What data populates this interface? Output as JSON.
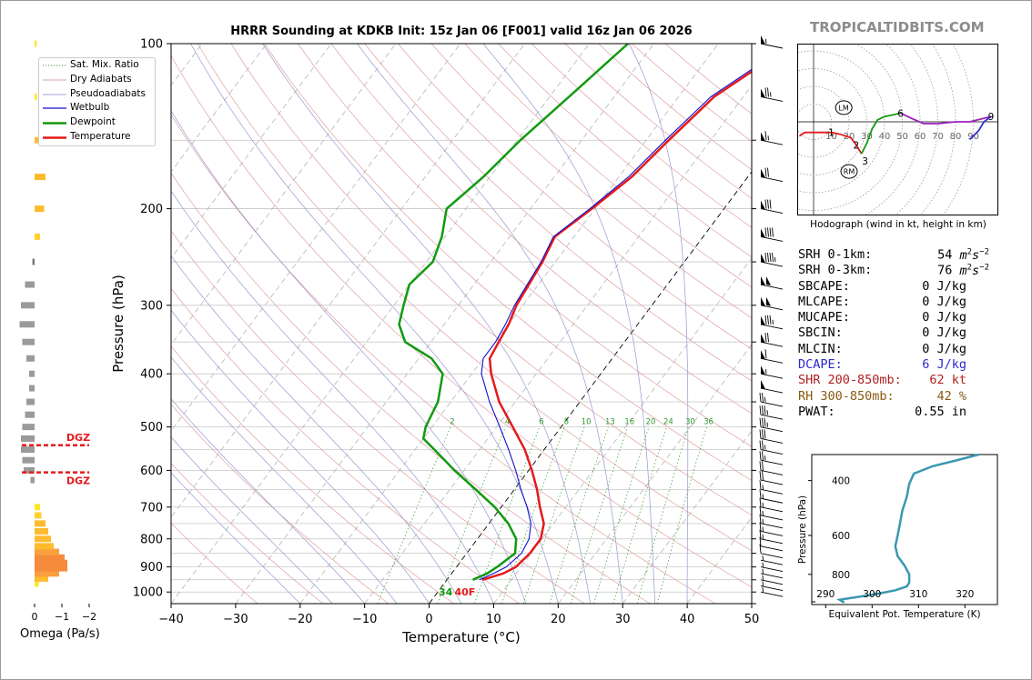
{
  "brand": "TROPICALTIDBITS.COM",
  "title": "HRRR Sounding at KDKB Init: 15z Jan 06 [F001] valid 16z Jan 06 2026",
  "chart_data": [
    {
      "type": "line",
      "name": "skew-t",
      "xlabel": "Temperature (°C)",
      "ylabel": "Pressure (hPa)",
      "xlim": [
        -40,
        50
      ],
      "ylim": [
        1050,
        100
      ],
      "y_scale": "log",
      "x_ticks": [
        "−40",
        "−30",
        "−20",
        "−10",
        "0",
        "10",
        "20",
        "30",
        "40",
        "50"
      ],
      "y_ticks": [
        100,
        200,
        300,
        400,
        500,
        600,
        700,
        800,
        900,
        1000
      ],
      "legend": {
        "position": "top-left",
        "entries": [
          "Sat. Mix. Ratio",
          "Dry Adiabats",
          "Pseudoadiabats",
          "Wetbulb",
          "Dewpoint",
          "Temperature"
        ]
      },
      "mixing_ratio_labels": [
        "2",
        "4",
        "6",
        "8",
        "10",
        "13",
        "16",
        "20",
        "24",
        "30",
        "36"
      ],
      "series": [
        {
          "name": "Temperature",
          "color": "#e41a1c",
          "points": [
            [
              950,
              5.5
            ],
            [
              925,
              8
            ],
            [
              900,
              9.2
            ],
            [
              850,
              9.8
            ],
            [
              800,
              9.8
            ],
            [
              750,
              8.5
            ],
            [
              700,
              6
            ],
            [
              650,
              3.5
            ],
            [
              600,
              0.5
            ],
            [
              550,
              -3
            ],
            [
              500,
              -7.5
            ],
            [
              450,
              -12.5
            ],
            [
              400,
              -17
            ],
            [
              375,
              -19
            ],
            [
              350,
              -19.5
            ],
            [
              325,
              -20
            ],
            [
              300,
              -21
            ],
            [
              250,
              -22
            ],
            [
              225,
              -23
            ],
            [
              200,
              -20.5
            ],
            [
              175,
              -18
            ],
            [
              150,
              -16.5
            ],
            [
              125,
              -14.5
            ],
            [
              110,
              -11
            ],
            [
              100,
              -9.5
            ]
          ]
        },
        {
          "name": "Wetbulb",
          "color": "#1010d0",
          "points": [
            [
              950,
              5
            ],
            [
              925,
              6.5
            ],
            [
              900,
              7.7
            ],
            [
              850,
              8.5
            ],
            [
              800,
              8
            ],
            [
              750,
              6.5
            ],
            [
              700,
              4
            ],
            [
              650,
              1
            ],
            [
              600,
              -2
            ],
            [
              550,
              -5.5
            ],
            [
              500,
              -9.5
            ],
            [
              450,
              -14
            ],
            [
              400,
              -18.5
            ],
            [
              375,
              -20
            ],
            [
              350,
              -20
            ],
            [
              325,
              -20.5
            ],
            [
              300,
              -21.3
            ],
            [
              250,
              -22.2
            ],
            [
              225,
              -23.2
            ],
            [
              200,
              -20.8
            ],
            [
              175,
              -18.5
            ],
            [
              150,
              -17
            ],
            [
              125,
              -15
            ],
            [
              110,
              -11.5
            ],
            [
              100,
              -10
            ]
          ]
        },
        {
          "name": "Dewpoint",
          "color": "#119a11",
          "points": [
            [
              950,
              4
            ],
            [
              925,
              5.5
            ],
            [
              900,
              6.3
            ],
            [
              850,
              7.5
            ],
            [
              800,
              6
            ],
            [
              750,
              3
            ],
            [
              700,
              -1
            ],
            [
              650,
              -6
            ],
            [
              600,
              -11.5
            ],
            [
              550,
              -17
            ],
            [
              525,
              -20
            ],
            [
              500,
              -21
            ],
            [
              450,
              -22
            ],
            [
              400,
              -24.5
            ],
            [
              375,
              -28
            ],
            [
              350,
              -34
            ],
            [
              325,
              -37
            ],
            [
              300,
              -38.5
            ],
            [
              275,
              -40
            ],
            [
              250,
              -39
            ],
            [
              225,
              -40.5
            ],
            [
              200,
              -43
            ],
            [
              175,
              -41
            ],
            [
              150,
              -39.5
            ],
            [
              125,
              -37
            ],
            [
              100,
              -34
            ]
          ]
        }
      ],
      "annotations": {
        "surface_dewpoint_f": "34",
        "surface_temp_f": "40F"
      },
      "omega": {
        "xlabel": "Omega (Pa/s)",
        "x_ticks": [
          "0",
          "−1",
          "−2"
        ],
        "dgz_label": "DGZ",
        "dgz_pressures": [
          540,
          605
        ],
        "levels": [
          {
            "p": 965,
            "v": 0.15,
            "color": "#fde725"
          },
          {
            "p": 945,
            "v": 0.5,
            "color": "#fdbb2d"
          },
          {
            "p": 925,
            "v": 0.9,
            "color": "#f9a03f"
          },
          {
            "p": 905,
            "v": 1.2,
            "color": "#f68b3d"
          },
          {
            "p": 885,
            "v": 1.2,
            "color": "#f68b3d"
          },
          {
            "p": 865,
            "v": 1.1,
            "color": "#f68b3d"
          },
          {
            "p": 845,
            "v": 0.9,
            "color": "#f9a03f"
          },
          {
            "p": 825,
            "v": 0.7,
            "color": "#fdbb2d"
          },
          {
            "p": 800,
            "v": 0.6,
            "color": "#fdbb2d"
          },
          {
            "p": 775,
            "v": 0.5,
            "color": "#fdbb2d"
          },
          {
            "p": 750,
            "v": 0.4,
            "color": "#fdbb2d"
          },
          {
            "p": 725,
            "v": 0.25,
            "color": "#fdd02d"
          },
          {
            "p": 700,
            "v": 0.2,
            "color": "#fde725"
          },
          {
            "p": 625,
            "v": -0.15,
            "color": "#9a9a9a"
          },
          {
            "p": 600,
            "v": -0.4,
            "color": "#9a9a9a"
          },
          {
            "p": 575,
            "v": -0.45,
            "color": "#9a9a9a"
          },
          {
            "p": 550,
            "v": -0.5,
            "color": "#9a9a9a"
          },
          {
            "p": 525,
            "v": -0.5,
            "color": "#9a9a9a"
          },
          {
            "p": 500,
            "v": -0.45,
            "color": "#9a9a9a"
          },
          {
            "p": 475,
            "v": -0.35,
            "color": "#9a9a9a"
          },
          {
            "p": 450,
            "v": -0.3,
            "color": "#9a9a9a"
          },
          {
            "p": 425,
            "v": -0.2,
            "color": "#9a9a9a"
          },
          {
            "p": 400,
            "v": -0.2,
            "color": "#9a9a9a"
          },
          {
            "p": 375,
            "v": -0.3,
            "color": "#9a9a9a"
          },
          {
            "p": 350,
            "v": -0.45,
            "color": "#9a9a9a"
          },
          {
            "p": 325,
            "v": -0.55,
            "color": "#9a9a9a"
          },
          {
            "p": 300,
            "v": -0.5,
            "color": "#9a9a9a"
          },
          {
            "p": 275,
            "v": -0.35,
            "color": "#9a9a9a"
          },
          {
            "p": 250,
            "v": -0.08,
            "color": "#777777"
          },
          {
            "p": 225,
            "v": 0.2,
            "color": "#fdd02d"
          },
          {
            "p": 200,
            "v": 0.35,
            "color": "#fdbb2d"
          },
          {
            "p": 175,
            "v": 0.4,
            "color": "#fdbb2d"
          },
          {
            "p": 150,
            "v": 0.35,
            "color": "#fdbb2d"
          },
          {
            "p": 125,
            "v": 0.08,
            "color": "#fde725"
          },
          {
            "p": 100,
            "v": 0.08,
            "color": "#fde725"
          }
        ]
      },
      "wind_barbs": [
        {
          "p": 100,
          "kt": 55
        },
        {
          "p": 125,
          "kt": 75
        },
        {
          "p": 150,
          "kt": 65
        },
        {
          "p": 175,
          "kt": 70
        },
        {
          "p": 200,
          "kt": 80
        },
        {
          "p": 225,
          "kt": 90
        },
        {
          "p": 250,
          "kt": 95
        },
        {
          "p": 275,
          "kt": 100
        },
        {
          "p": 300,
          "kt": 100
        },
        {
          "p": 325,
          "kt": 85
        },
        {
          "p": 350,
          "kt": 70
        },
        {
          "p": 375,
          "kt": 60
        },
        {
          "p": 400,
          "kt": 55
        },
        {
          "p": 425,
          "kt": 50
        },
        {
          "p": 450,
          "kt": 25
        },
        {
          "p": 475,
          "kt": 35
        },
        {
          "p": 500,
          "kt": 35
        },
        {
          "p": 525,
          "kt": 30
        },
        {
          "p": 550,
          "kt": 25
        },
        {
          "p": 575,
          "kt": 25
        },
        {
          "p": 600,
          "kt": 20
        },
        {
          "p": 625,
          "kt": 20
        },
        {
          "p": 650,
          "kt": 15
        },
        {
          "p": 675,
          "kt": 15
        },
        {
          "p": 700,
          "kt": 15
        },
        {
          "p": 725,
          "kt": 15
        },
        {
          "p": 750,
          "kt": 15
        },
        {
          "p": 775,
          "kt": 15
        },
        {
          "p": 800,
          "kt": 15
        },
        {
          "p": 825,
          "kt": 10
        },
        {
          "p": 850,
          "kt": 10
        },
        {
          "p": 875,
          "kt": 5
        },
        {
          "p": 900,
          "kt": 5
        },
        {
          "p": 925,
          "kt": 5
        },
        {
          "p": 950,
          "kt": 5
        },
        {
          "p": 975,
          "kt": 5
        },
        {
          "p": 1000,
          "kt": 5
        }
      ]
    },
    {
      "type": "line",
      "name": "hodograph",
      "caption": "Hodograph (wind in kt, height in km)",
      "ring_labels": [
        "10",
        "20",
        "30",
        "40",
        "50",
        "60",
        "70",
        "80",
        "90"
      ],
      "storm_motion_labels": [
        "LM",
        "RM"
      ],
      "storm_motion": {
        "LM": [
          17,
          8
        ],
        "RM": [
          20,
          -28
        ]
      },
      "segments": [
        {
          "color": "#e41a1c",
          "points": [
            [
              -8,
              -8
            ],
            [
              -5,
              -6
            ],
            [
              4,
              -6
            ],
            [
              10,
              -6
            ],
            [
              15,
              -7
            ],
            [
              21,
              -9
            ],
            [
              24,
              -13
            ],
            [
              27,
              -18
            ]
          ]
        },
        {
          "color": "#119a11",
          "points": [
            [
              27,
              -18
            ],
            [
              30,
              -12
            ],
            [
              33,
              -4
            ],
            [
              36,
              1
            ],
            [
              38,
              2
            ],
            [
              40,
              3
            ],
            [
              45,
              4
            ],
            [
              49,
              5
            ]
          ]
        },
        {
          "color": "#9b1fbf",
          "points": [
            [
              49,
              5
            ],
            [
              55,
              2
            ],
            [
              62,
              -1
            ],
            [
              70,
              -1
            ],
            [
              80,
              0
            ],
            [
              88,
              0
            ],
            [
              96,
              2
            ],
            [
              100,
              3
            ]
          ]
        },
        {
          "color": "#3030d8",
          "points": [
            [
              100,
              3
            ],
            [
              96,
              0
            ],
            [
              93,
              -5
            ],
            [
              88,
              -10
            ]
          ]
        }
      ],
      "height_labels": [
        {
          "label": "1",
          "u": 10,
          "v": -6
        },
        {
          "label": "2",
          "u": 24,
          "v": -13
        },
        {
          "label": "3",
          "u": 29,
          "v": -22
        },
        {
          "label": "6",
          "u": 49,
          "v": 5
        },
        {
          "label": "9",
          "u": 100,
          "v": 3
        }
      ]
    },
    {
      "type": "line",
      "name": "theta-e",
      "xlabel": "Equivalent Pot. Temperature (K)",
      "ylabel": "Pressure (hPa)",
      "xlim": [
        287,
        327
      ],
      "ylim": [
        1000,
        330
      ],
      "x_ticks": [
        "290",
        "300",
        "310",
        "320"
      ],
      "y_ticks": [
        400,
        600,
        800
      ],
      "series": [
        {
          "name": "",
          "color": "#3a98b0",
          "points": [
            [
              985,
              294
            ],
            [
              965,
              293
            ],
            [
              950,
              296
            ],
            [
              925,
              301
            ],
            [
              900,
              305
            ],
            [
              875,
              307.5
            ],
            [
              850,
              308
            ],
            [
              800,
              308
            ],
            [
              750,
              307
            ],
            [
              700,
              305.5
            ],
            [
              650,
              305
            ],
            [
              600,
              305.5
            ],
            [
              550,
              306
            ],
            [
              500,
              306.5
            ],
            [
              450,
              307.5
            ],
            [
              410,
              308
            ],
            [
              380,
              309
            ],
            [
              360,
              313
            ],
            [
              345,
              318
            ],
            [
              330,
              323
            ]
          ]
        }
      ]
    }
  ],
  "parameters": [
    {
      "label": "SRH 0-1km:",
      "value": "54",
      "unit": "m2s-2",
      "color": "#000000"
    },
    {
      "label": "SRH 0-3km:",
      "value": "76",
      "unit": "m2s-2",
      "color": "#000000"
    },
    {
      "label": "SBCAPE:",
      "value": "0 J/kg",
      "color": "#000000"
    },
    {
      "label": "MLCAPE:",
      "value": "0 J/kg",
      "color": "#000000"
    },
    {
      "label": "MUCAPE:",
      "value": "0 J/kg",
      "color": "#000000"
    },
    {
      "label": "SBCIN:",
      "value": "0 J/kg",
      "color": "#000000"
    },
    {
      "label": "MLCIN:",
      "value": "0 J/kg",
      "color": "#000000"
    },
    {
      "label": "DCAPE:",
      "value": "6 J/kg",
      "color": "#2a2ad0"
    },
    {
      "label": "SHR 200-850mb:",
      "value": "62 kt",
      "color": "#b02020"
    },
    {
      "label": "RH 300-850mb:",
      "value": "42 %",
      "color": "#8a5a10"
    },
    {
      "label": "PWAT:",
      "value": "0.55 in",
      "color": "#000000"
    }
  ]
}
